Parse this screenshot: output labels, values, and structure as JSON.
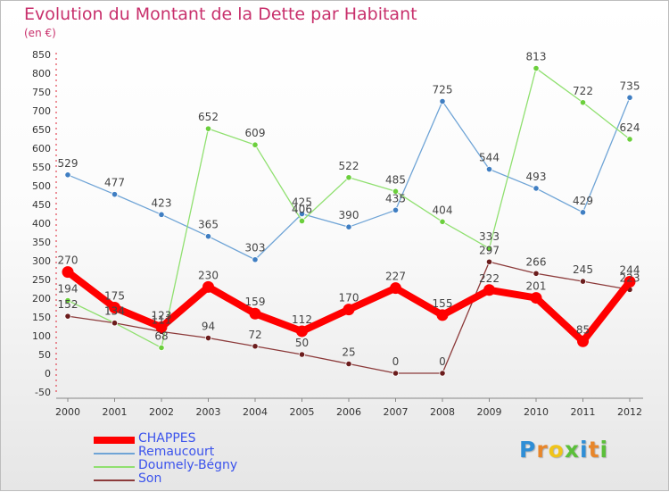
{
  "chart_data": {
    "type": "line",
    "title": "Evolution du Montant de la Dette par Habitant",
    "subtitle": "(en €)",
    "x": [
      "2000",
      "2001",
      "2002",
      "2003",
      "2004",
      "2005",
      "2006",
      "2007",
      "2008",
      "2009",
      "2010",
      "2011",
      "2012"
    ],
    "yticks": [
      "-50",
      "0",
      "50",
      "100",
      "150",
      "200",
      "250",
      "300",
      "350",
      "400",
      "450",
      "500",
      "550",
      "600",
      "650",
      "700",
      "750",
      "800",
      "850"
    ],
    "ylim": [
      -50,
      850
    ],
    "grid": false,
    "legend_position": "bottom-left",
    "series": [
      {
        "name": "CHAPPES",
        "color": "#ff0000",
        "marker_color": "#ff0000",
        "width": 8,
        "values": [
          270,
          175,
          123,
          230,
          159,
          112,
          170,
          227,
          155,
          222,
          201,
          85,
          244
        ],
        "labels": [
          "270",
          "175",
          "123",
          "230",
          "159",
          "112",
          "170",
          "227",
          "155",
          "222",
          "201",
          "85",
          "244"
        ]
      },
      {
        "name": "Remaucourt",
        "color": "#6fa4d6",
        "marker_color": "#3f7ec2",
        "width": 1.3,
        "values": [
          529,
          477,
          423,
          365,
          303,
          425,
          390,
          435,
          725,
          544,
          493,
          429,
          735
        ],
        "labels": [
          "529",
          "477",
          "423",
          "365",
          "303",
          "425",
          "390",
          "435",
          "725",
          "544",
          "493",
          "429",
          "735"
        ]
      },
      {
        "name": "Doumely-Bégny",
        "color": "#90e070",
        "marker_color": "#6bcf3c",
        "width": 1.3,
        "values": [
          194,
          134,
          68,
          652,
          609,
          406,
          522,
          485,
          404,
          333,
          813,
          722,
          624
        ],
        "labels": [
          "194",
          "134",
          "68",
          "652",
          "609",
          "406",
          "522",
          "485",
          "404",
          "333",
          "813",
          "722",
          "624"
        ]
      },
      {
        "name": "Son",
        "color": "#8c3a3a",
        "marker_color": "#6b1c1c",
        "width": 1.3,
        "values": [
          152,
          134,
          111,
          94,
          72,
          50,
          25,
          0,
          0,
          297,
          266,
          245,
          223
        ],
        "labels": [
          "152",
          "134",
          "111",
          "94",
          "72",
          "50",
          "25",
          "0",
          "0",
          "297",
          "266",
          "245",
          "223"
        ]
      }
    ]
  },
  "legend": {
    "items": [
      {
        "label": "CHAPPES",
        "color": "#ff0000",
        "thickness": 8
      },
      {
        "label": "Remaucourt",
        "color": "#6fa4d6",
        "thickness": 2
      },
      {
        "label": "Doumely-Bégny",
        "color": "#90e070",
        "thickness": 2
      },
      {
        "label": "Son",
        "color": "#8c3a3a",
        "thickness": 2
      }
    ]
  },
  "brand": {
    "letters": [
      {
        "ch": "P",
        "color": "#2f8ed6"
      },
      {
        "ch": "r",
        "color": "#e8862a"
      },
      {
        "ch": "o",
        "color": "#f0c419"
      },
      {
        "ch": "x",
        "color": "#5bbf3a"
      },
      {
        "ch": "i",
        "color": "#2f8ed6"
      },
      {
        "ch": "t",
        "color": "#e8862a"
      },
      {
        "ch": "i",
        "color": "#5bbf3a"
      }
    ]
  }
}
